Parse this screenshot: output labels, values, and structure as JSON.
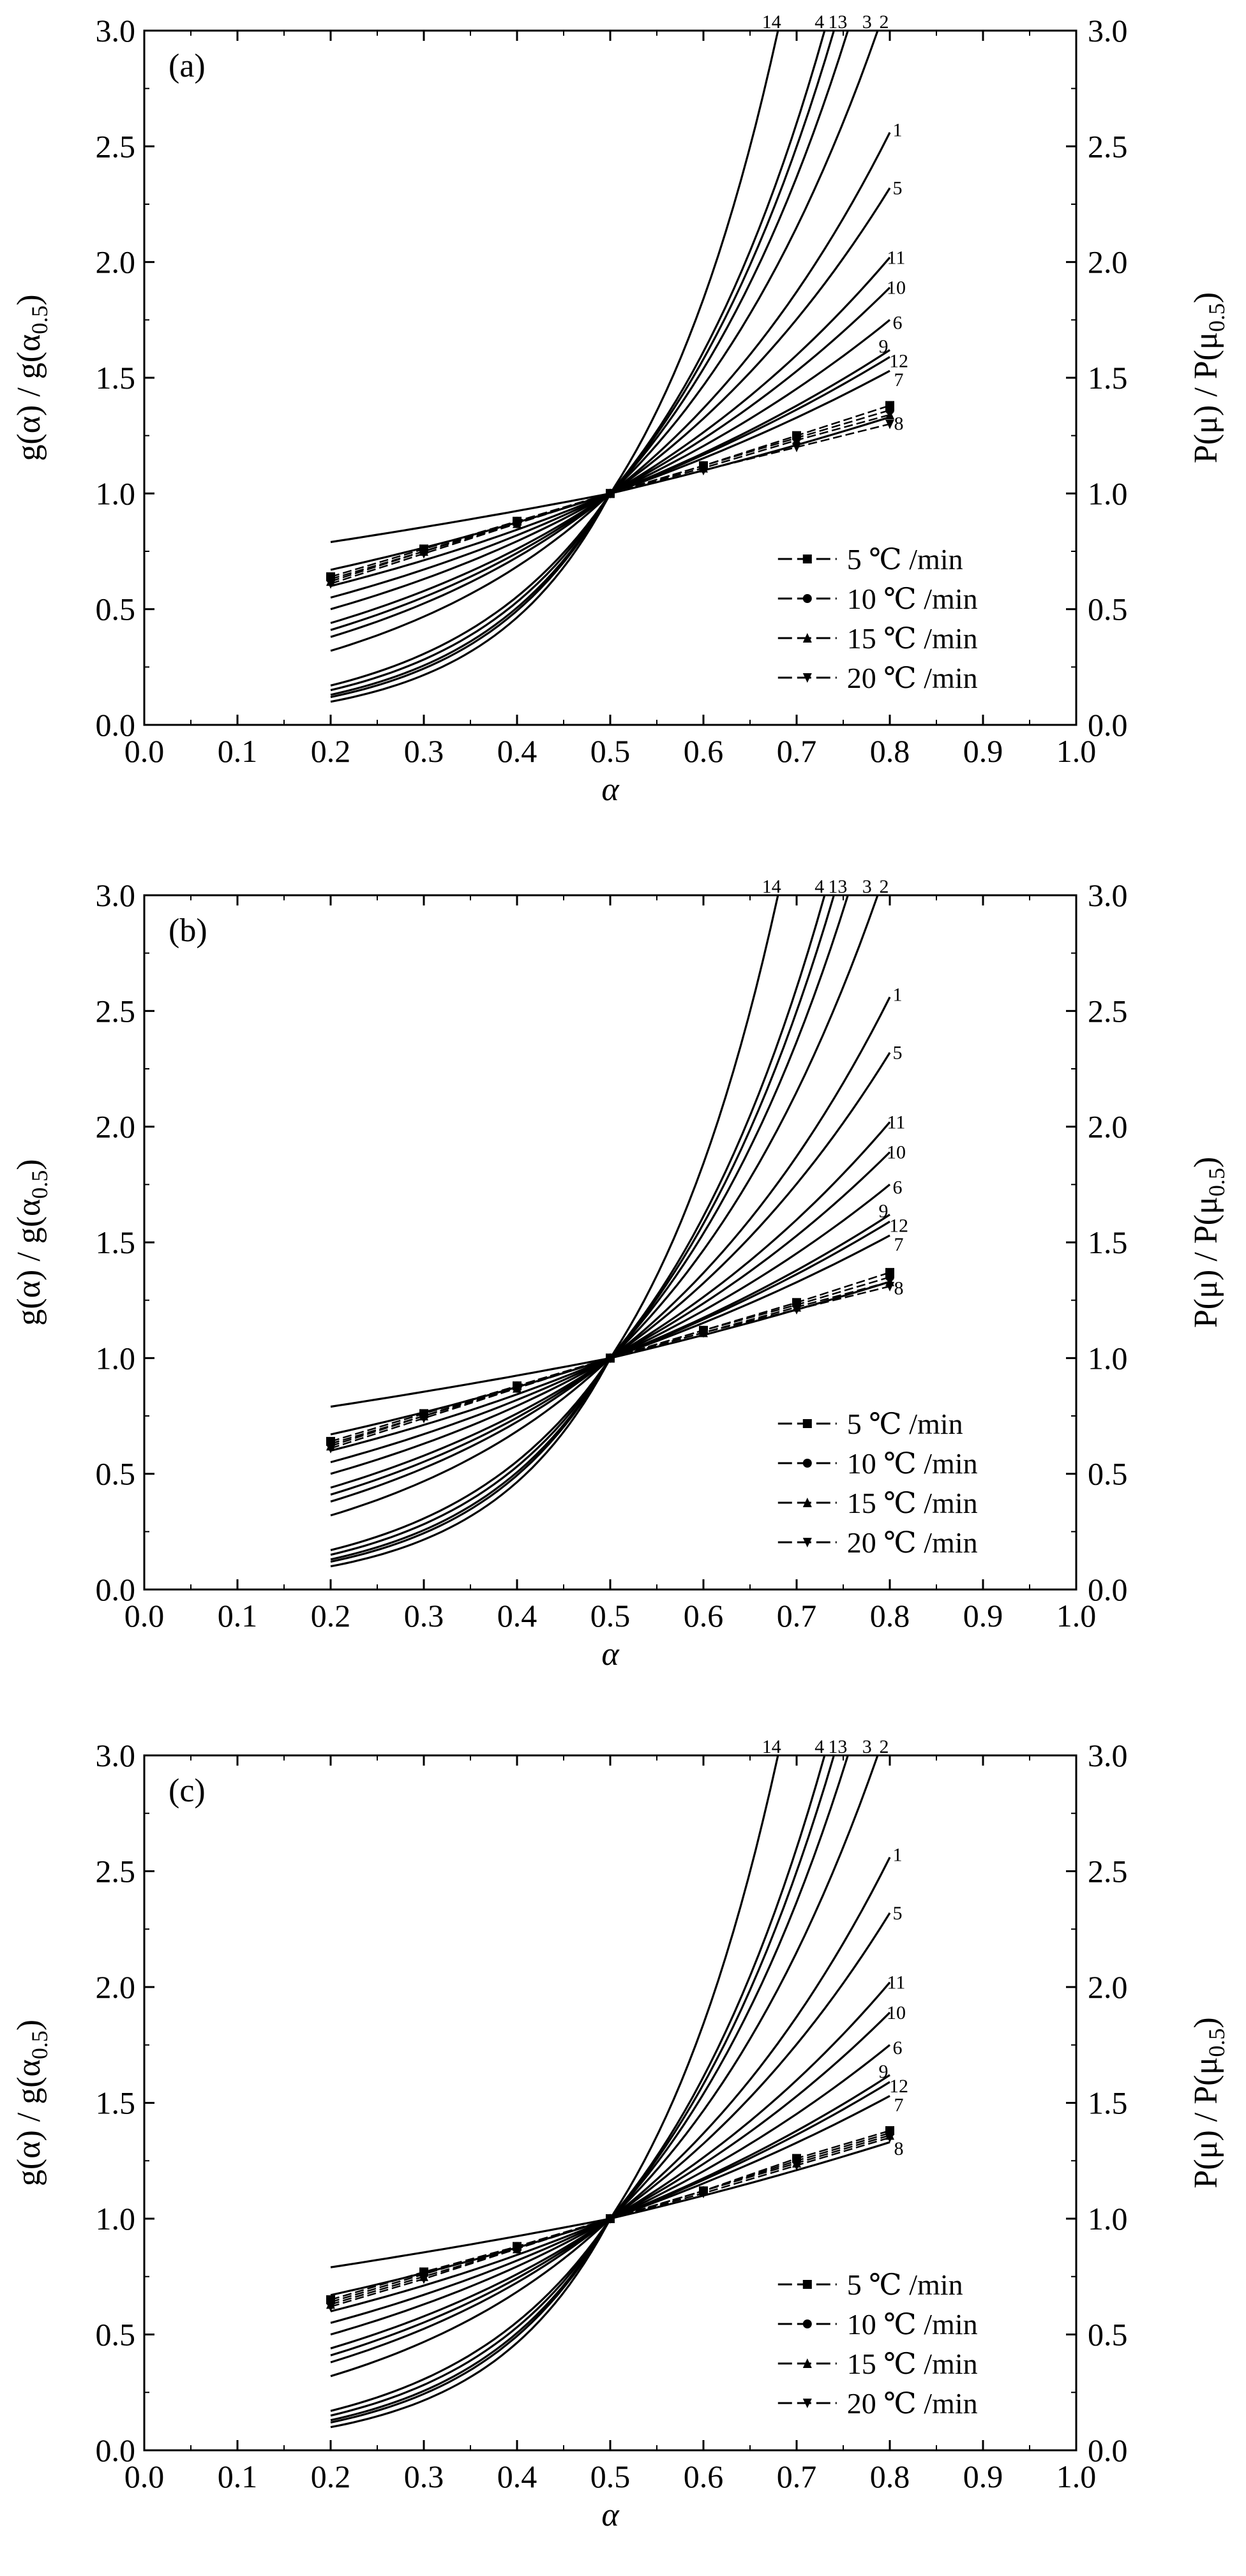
{
  "chart_data": [
    {
      "type": "line",
      "panel_label": "(a)",
      "xlabel": "α",
      "ylabel_left": "g(α) / g(α0.5)",
      "ylabel_right": "P(μ) / P(μ0.5)",
      "xlim": [
        0.0,
        1.0
      ],
      "ylim": [
        0.0,
        3.0
      ],
      "xticks": [
        "0.0",
        "0.1",
        "0.2",
        "0.3",
        "0.4",
        "0.5",
        "0.6",
        "0.7",
        "0.8",
        "0.9",
        "1.0"
      ],
      "yticks": [
        "0.0",
        "0.5",
        "1.0",
        "1.5",
        "2.0",
        "2.5",
        "3.0"
      ],
      "legend": [
        "5 ℃ /min",
        "10 ℃ /min",
        "15 ℃ /min",
        "20 ℃ /min"
      ],
      "legend_position": "lower-right",
      "model_curves": [
        {
          "label": "1",
          "x": [
            0.2,
            0.5,
            0.8
          ],
          "y": [
            0.32,
            1.0,
            2.56
          ]
        },
        {
          "label": "2",
          "x": [
            0.2,
            0.5,
            0.787
          ],
          "y": [
            0.17,
            1.0,
            3.0
          ]
        },
        {
          "label": "3",
          "x": [
            0.2,
            0.5,
            0.755
          ],
          "y": [
            0.15,
            1.0,
            3.0
          ]
        },
        {
          "label": "4",
          "x": [
            0.2,
            0.5,
            0.73
          ],
          "y": [
            0.13,
            1.0,
            3.0
          ]
        },
        {
          "label": "5",
          "x": [
            0.2,
            0.5,
            0.8
          ],
          "y": [
            0.38,
            1.0,
            2.32
          ]
        },
        {
          "label": "6",
          "x": [
            0.2,
            0.5,
            0.8
          ],
          "y": [
            0.5,
            1.0,
            1.75
          ]
        },
        {
          "label": "7",
          "x": [
            0.2,
            0.5,
            0.8
          ],
          "y": [
            0.6,
            1.0,
            1.53
          ]
        },
        {
          "label": "8",
          "x": [
            0.2,
            0.5,
            0.8
          ],
          "y": [
            0.67,
            1.0,
            1.33
          ]
        },
        {
          "label": "9",
          "x": [
            0.2,
            0.5,
            0.8
          ],
          "y": [
            0.55,
            1.0,
            1.62
          ]
        },
        {
          "label": "10",
          "x": [
            0.2,
            0.5,
            0.8
          ],
          "y": [
            0.44,
            1.0,
            1.89
          ]
        },
        {
          "label": "11",
          "x": [
            0.2,
            0.5,
            0.8
          ],
          "y": [
            0.41,
            1.0,
            2.02
          ]
        },
        {
          "label": "12",
          "x": [
            0.2,
            0.5,
            0.8
          ],
          "y": [
            0.79,
            1.0,
            1.59
          ]
        },
        {
          "label": "13",
          "x": [
            0.2,
            0.5,
            0.74
          ],
          "y": [
            0.12,
            1.0,
            3.0
          ]
        },
        {
          "label": "14",
          "x": [
            0.2,
            0.5,
            0.68
          ],
          "y": [
            0.1,
            1.0,
            3.0
          ]
        }
      ],
      "series": [
        {
          "name": "5 ℃ /min",
          "marker": "square",
          "x": [
            0.2,
            0.3,
            0.4,
            0.5,
            0.6,
            0.7,
            0.8
          ],
          "y": [
            0.64,
            0.76,
            0.88,
            1.0,
            1.12,
            1.25,
            1.38
          ]
        },
        {
          "name": "10 ℃ /min",
          "marker": "circle",
          "x": [
            0.2,
            0.3,
            0.4,
            0.5,
            0.6,
            0.7,
            0.8
          ],
          "y": [
            0.63,
            0.75,
            0.88,
            1.0,
            1.12,
            1.24,
            1.36
          ]
        },
        {
          "name": "15 ℃ /min",
          "marker": "triangle-up",
          "x": [
            0.2,
            0.3,
            0.4,
            0.5,
            0.6,
            0.7,
            0.8
          ],
          "y": [
            0.62,
            0.75,
            0.87,
            1.0,
            1.11,
            1.23,
            1.34
          ]
        },
        {
          "name": "20 ℃ /min",
          "marker": "triangle-down",
          "x": [
            0.2,
            0.3,
            0.4,
            0.5,
            0.6,
            0.7,
            0.8
          ],
          "y": [
            0.61,
            0.74,
            0.87,
            1.0,
            1.1,
            1.2,
            1.3
          ]
        }
      ]
    },
    {
      "type": "line",
      "panel_label": "(b)",
      "xlabel": "α",
      "ylabel_left": "g(α) / g(α0.5)",
      "ylabel_right": "P(μ) / P(μ0.5)",
      "xlim": [
        0.0,
        1.0
      ],
      "ylim": [
        0.0,
        3.0
      ],
      "xticks": [
        "0.0",
        "0.1",
        "0.2",
        "0.3",
        "0.4",
        "0.5",
        "0.6",
        "0.7",
        "0.8",
        "0.9",
        "1.0"
      ],
      "yticks": [
        "0.0",
        "0.5",
        "1.0",
        "1.5",
        "2.0",
        "2.5",
        "3.0"
      ],
      "legend": [
        "5 ℃ /min",
        "10 ℃ /min",
        "15 ℃ /min",
        "20 ℃ /min"
      ],
      "legend_position": "lower-right",
      "model_curves": [
        {
          "label": "1",
          "x": [
            0.2,
            0.5,
            0.8
          ],
          "y": [
            0.32,
            1.0,
            2.56
          ]
        },
        {
          "label": "2",
          "x": [
            0.2,
            0.5,
            0.787
          ],
          "y": [
            0.17,
            1.0,
            3.0
          ]
        },
        {
          "label": "3",
          "x": [
            0.2,
            0.5,
            0.755
          ],
          "y": [
            0.15,
            1.0,
            3.0
          ]
        },
        {
          "label": "4",
          "x": [
            0.2,
            0.5,
            0.73
          ],
          "y": [
            0.13,
            1.0,
            3.0
          ]
        },
        {
          "label": "5",
          "x": [
            0.2,
            0.5,
            0.8
          ],
          "y": [
            0.38,
            1.0,
            2.32
          ]
        },
        {
          "label": "6",
          "x": [
            0.2,
            0.5,
            0.8
          ],
          "y": [
            0.5,
            1.0,
            1.75
          ]
        },
        {
          "label": "7",
          "x": [
            0.2,
            0.5,
            0.8
          ],
          "y": [
            0.6,
            1.0,
            1.53
          ]
        },
        {
          "label": "8",
          "x": [
            0.2,
            0.5,
            0.8
          ],
          "y": [
            0.67,
            1.0,
            1.33
          ]
        },
        {
          "label": "9",
          "x": [
            0.2,
            0.5,
            0.8
          ],
          "y": [
            0.55,
            1.0,
            1.62
          ]
        },
        {
          "label": "10",
          "x": [
            0.2,
            0.5,
            0.8
          ],
          "y": [
            0.44,
            1.0,
            1.89
          ]
        },
        {
          "label": "11",
          "x": [
            0.2,
            0.5,
            0.8
          ],
          "y": [
            0.41,
            1.0,
            2.02
          ]
        },
        {
          "label": "12",
          "x": [
            0.2,
            0.5,
            0.8
          ],
          "y": [
            0.79,
            1.0,
            1.59
          ]
        },
        {
          "label": "13",
          "x": [
            0.2,
            0.5,
            0.74
          ],
          "y": [
            0.12,
            1.0,
            3.0
          ]
        },
        {
          "label": "14",
          "x": [
            0.2,
            0.5,
            0.68
          ],
          "y": [
            0.1,
            1.0,
            3.0
          ]
        }
      ],
      "series": [
        {
          "name": "5 ℃ /min",
          "marker": "square",
          "x": [
            0.2,
            0.3,
            0.4,
            0.5,
            0.6,
            0.7,
            0.8
          ],
          "y": [
            0.64,
            0.76,
            0.88,
            1.0,
            1.12,
            1.24,
            1.37
          ]
        },
        {
          "name": "10 ℃ /min",
          "marker": "circle",
          "x": [
            0.2,
            0.3,
            0.4,
            0.5,
            0.6,
            0.7,
            0.8
          ],
          "y": [
            0.63,
            0.75,
            0.88,
            1.0,
            1.12,
            1.23,
            1.35
          ]
        },
        {
          "name": "15 ℃ /min",
          "marker": "triangle-up",
          "x": [
            0.2,
            0.3,
            0.4,
            0.5,
            0.6,
            0.7,
            0.8
          ],
          "y": [
            0.62,
            0.75,
            0.87,
            1.0,
            1.11,
            1.22,
            1.33
          ]
        },
        {
          "name": "20 ℃ /min",
          "marker": "triangle-down",
          "x": [
            0.2,
            0.3,
            0.4,
            0.5,
            0.6,
            0.7,
            0.8
          ],
          "y": [
            0.61,
            0.74,
            0.87,
            1.0,
            1.11,
            1.21,
            1.31
          ]
        }
      ]
    },
    {
      "type": "line",
      "panel_label": "(c)",
      "xlabel": "α",
      "ylabel_left": "g(α) / g(α0.5)",
      "ylabel_right": "P(μ) / P(μ0.5)",
      "xlim": [
        0.0,
        1.0
      ],
      "ylim": [
        0.0,
        3.0
      ],
      "xticks": [
        "0.0",
        "0.1",
        "0.2",
        "0.3",
        "0.4",
        "0.5",
        "0.6",
        "0.7",
        "0.8",
        "0.9",
        "1.0"
      ],
      "yticks": [
        "0.0",
        "0.5",
        "1.0",
        "1.5",
        "2.0",
        "2.5",
        "3.0"
      ],
      "legend": [
        "5 ℃ /min",
        "10 ℃ /min",
        "15 ℃ /min",
        "20 ℃ /min"
      ],
      "legend_position": "lower-right",
      "model_curves": [
        {
          "label": "1",
          "x": [
            0.2,
            0.5,
            0.8
          ],
          "y": [
            0.32,
            1.0,
            2.56
          ]
        },
        {
          "label": "2",
          "x": [
            0.2,
            0.5,
            0.787
          ],
          "y": [
            0.17,
            1.0,
            3.0
          ]
        },
        {
          "label": "3",
          "x": [
            0.2,
            0.5,
            0.755
          ],
          "y": [
            0.15,
            1.0,
            3.0
          ]
        },
        {
          "label": "4",
          "x": [
            0.2,
            0.5,
            0.73
          ],
          "y": [
            0.13,
            1.0,
            3.0
          ]
        },
        {
          "label": "5",
          "x": [
            0.2,
            0.5,
            0.8
          ],
          "y": [
            0.38,
            1.0,
            2.32
          ]
        },
        {
          "label": "6",
          "x": [
            0.2,
            0.5,
            0.8
          ],
          "y": [
            0.5,
            1.0,
            1.75
          ]
        },
        {
          "label": "7",
          "x": [
            0.2,
            0.5,
            0.8
          ],
          "y": [
            0.6,
            1.0,
            1.53
          ]
        },
        {
          "label": "8",
          "x": [
            0.2,
            0.5,
            0.8
          ],
          "y": [
            0.67,
            1.0,
            1.33
          ]
        },
        {
          "label": "9",
          "x": [
            0.2,
            0.5,
            0.8
          ],
          "y": [
            0.55,
            1.0,
            1.62
          ]
        },
        {
          "label": "10",
          "x": [
            0.2,
            0.5,
            0.8
          ],
          "y": [
            0.44,
            1.0,
            1.89
          ]
        },
        {
          "label": "11",
          "x": [
            0.2,
            0.5,
            0.8
          ],
          "y": [
            0.41,
            1.0,
            2.02
          ]
        },
        {
          "label": "12",
          "x": [
            0.2,
            0.5,
            0.8
          ],
          "y": [
            0.79,
            1.0,
            1.59
          ]
        },
        {
          "label": "13",
          "x": [
            0.2,
            0.5,
            0.74
          ],
          "y": [
            0.12,
            1.0,
            3.0
          ]
        },
        {
          "label": "14",
          "x": [
            0.2,
            0.5,
            0.68
          ],
          "y": [
            0.1,
            1.0,
            3.0
          ]
        }
      ],
      "series": [
        {
          "name": "5 ℃ /min",
          "marker": "square",
          "x": [
            0.2,
            0.3,
            0.4,
            0.5,
            0.6,
            0.7,
            0.8
          ],
          "y": [
            0.65,
            0.77,
            0.88,
            1.0,
            1.12,
            1.26,
            1.38
          ]
        },
        {
          "name": "10 ℃ /min",
          "marker": "circle",
          "x": [
            0.2,
            0.3,
            0.4,
            0.5,
            0.6,
            0.7,
            0.8
          ],
          "y": [
            0.64,
            0.76,
            0.88,
            1.0,
            1.12,
            1.25,
            1.37
          ]
        },
        {
          "name": "15 ℃ /min",
          "marker": "triangle-up",
          "x": [
            0.2,
            0.3,
            0.4,
            0.5,
            0.6,
            0.7,
            0.8
          ],
          "y": [
            0.63,
            0.75,
            0.87,
            1.0,
            1.12,
            1.24,
            1.36
          ]
        },
        {
          "name": "20 ℃ /min",
          "marker": "triangle-down",
          "x": [
            0.2,
            0.3,
            0.4,
            0.5,
            0.6,
            0.7,
            0.8
          ],
          "y": [
            0.62,
            0.74,
            0.87,
            1.0,
            1.11,
            1.23,
            1.35
          ]
        }
      ]
    }
  ]
}
